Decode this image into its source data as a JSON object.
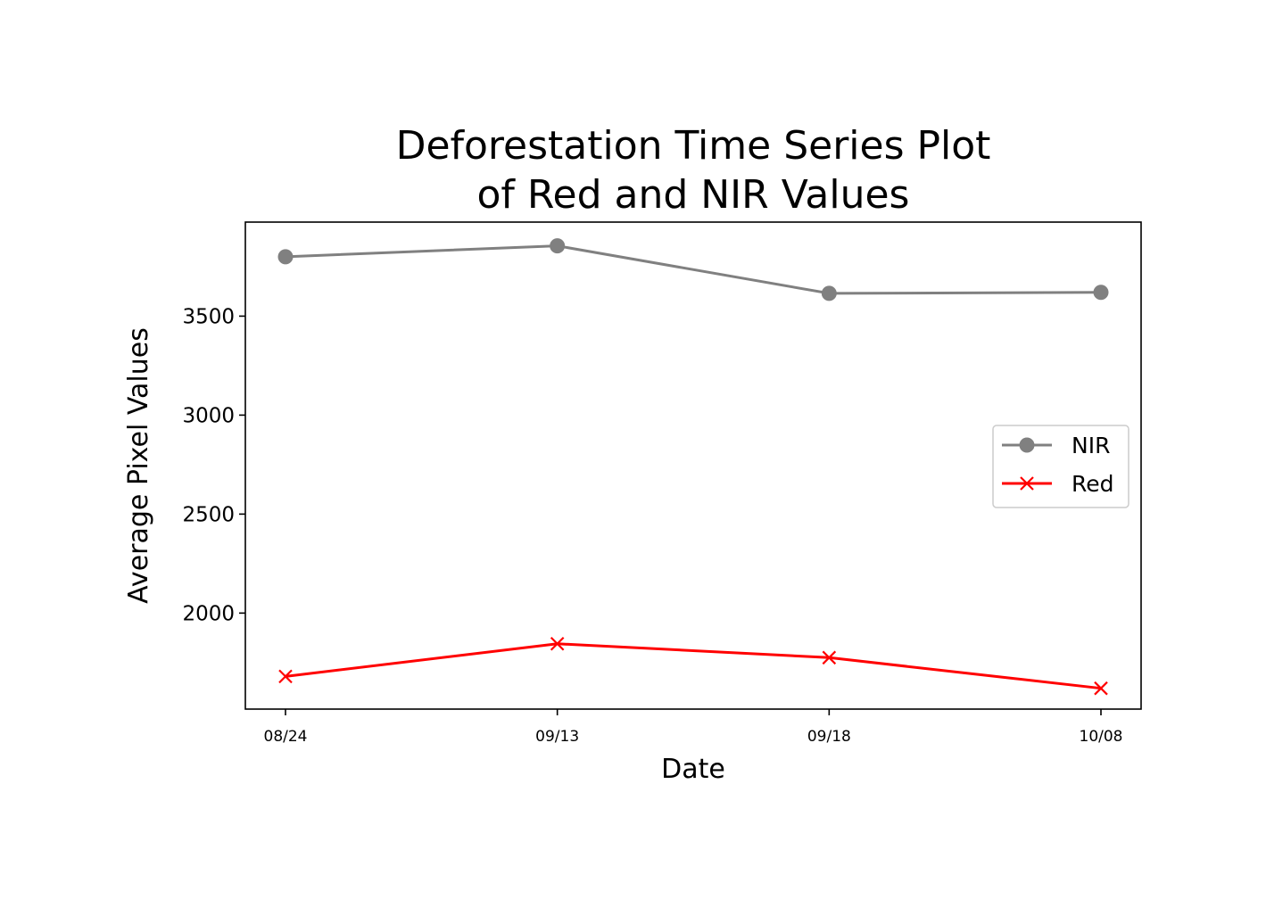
{
  "chart_data": {
    "type": "line",
    "title": "Deforestation Time Series Plot\nof Red and NIR Values",
    "title_lines": [
      "Deforestation Time Series Plot",
      "of Red and NIR Values"
    ],
    "xlabel": "Date",
    "ylabel": "Average Pixel Values",
    "categories": [
      "08/24",
      "09/13",
      "09/18",
      "10/08"
    ],
    "yticks": [
      2000,
      2500,
      3000,
      3500
    ],
    "ylim": [
      1515,
      3975
    ],
    "grid": false,
    "legend_position": "center-right",
    "series": [
      {
        "name": "NIR",
        "values": [
          3800,
          3855,
          3615,
          3620
        ],
        "color": "#808080",
        "marker": "circle"
      },
      {
        "name": "Red",
        "values": [
          1680,
          1845,
          1775,
          1620
        ],
        "color": "#ff0000",
        "marker": "x"
      }
    ]
  }
}
